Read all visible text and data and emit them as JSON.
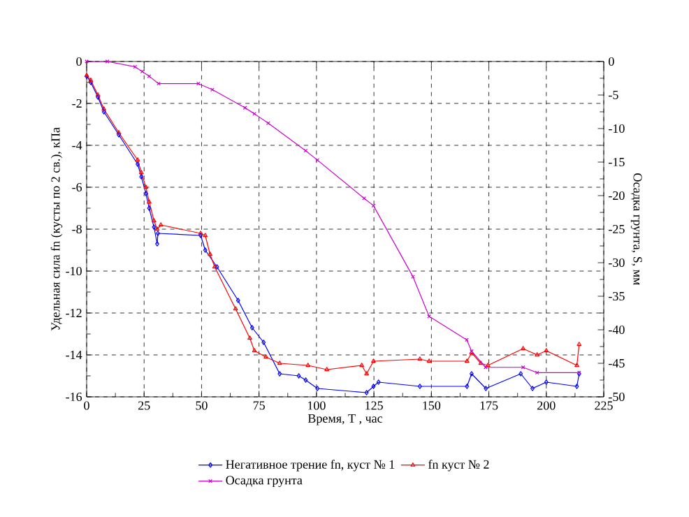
{
  "chart_data": {
    "type": "line",
    "xlabel": "Время, T , час",
    "ylabel": "Удельная сила fn (кусты по 2 св.), кПа",
    "y2label": "Осадка грунта, S, мм",
    "xlim": [
      0,
      225
    ],
    "ylim": [
      -16,
      0
    ],
    "y2lim": [
      -50,
      0
    ],
    "xticks": [
      0,
      25,
      50,
      75,
      100,
      125,
      150,
      175,
      200,
      225
    ],
    "yticks": [
      -16,
      -14,
      -12,
      -10,
      -8,
      -6,
      -4,
      -2,
      0
    ],
    "y2ticks": [
      -50,
      -45,
      -40,
      -35,
      -30,
      -25,
      -20,
      -15,
      -10,
      -5,
      0
    ],
    "grid": true,
    "legend": "bottom",
    "series": [
      {
        "name": "Негативное трение fn, куст № 1",
        "color": "#0000ff",
        "marker": "diamond",
        "x": [
          0,
          1.8,
          4.9,
          7.5,
          14,
          22.2,
          23.8,
          25.8,
          27.2,
          29.3,
          30.7,
          31,
          49.6,
          51.6,
          56.7,
          65.9,
          72,
          77,
          84,
          92.3,
          95.3,
          100.4,
          121.8,
          124.8,
          127,
          145,
          165.5,
          167.5,
          173.7,
          188.9,
          194,
          200,
          213.3,
          214.3
        ],
        "values": [
          -0.7,
          -1.0,
          -1.7,
          -2.4,
          -3.5,
          -4.9,
          -5.5,
          -6.3,
          -7.0,
          -7.9,
          -8.7,
          -8.2,
          -8.3,
          -9.0,
          -9.8,
          -11.4,
          -12.7,
          -13.4,
          -14.9,
          -15.0,
          -15.2,
          -15.6,
          -15.8,
          -15.5,
          -15.3,
          -15.5,
          -15.5,
          -14.9,
          -15.6,
          -14.9,
          -15.6,
          -15.3,
          -15.5,
          -14.9
        ]
      },
      {
        "name": "fn куст № 2",
        "color": "#ff0000",
        "marker": "triangle",
        "x": [
          0,
          1.8,
          4.9,
          7.5,
          14,
          22.2,
          23.8,
          25.8,
          27.2,
          29.3,
          30.7,
          32.3,
          49.6,
          51.6,
          53.7,
          55.7,
          64.8,
          71,
          73,
          78,
          84,
          96.3,
          104.5,
          119.7,
          121.8,
          124.8,
          145,
          149,
          165.5,
          167.5,
          171.5,
          174.6,
          189.9,
          196,
          200,
          213.3,
          214.3
        ],
        "values": [
          -0.67,
          -0.89,
          -1.6,
          -2.27,
          -3.4,
          -4.7,
          -5.3,
          -6.0,
          -6.7,
          -7.6,
          -8.0,
          -7.8,
          -8.2,
          -8.3,
          -9.2,
          -9.8,
          -11.8,
          -13.2,
          -13.8,
          -14.1,
          -14.4,
          -14.5,
          -14.7,
          -14.5,
          -14.9,
          -14.3,
          -14.2,
          -14.3,
          -14.3,
          -13.9,
          -14.4,
          -14.5,
          -13.7,
          -14.0,
          -13.8,
          -14.5,
          -13.5
        ]
      },
      {
        "name": "Осадка грунта",
        "color": "#cc00cc",
        "marker": "cross",
        "axis": "y2",
        "x": [
          0,
          9,
          21.1,
          24.2,
          27.2,
          31.3,
          48.6,
          54.7,
          68.9,
          73,
          79,
          95.3,
          100.4,
          120.7,
          124.8,
          142,
          149,
          165.4,
          167.5,
          173.6,
          189.9,
          196,
          214.3
        ],
        "values": [
          0,
          0,
          -0.8,
          -1.5,
          -2.2,
          -3.3,
          -3.3,
          -4.2,
          -6.9,
          -7.8,
          -9.2,
          -13.3,
          -14.7,
          -20.4,
          -21.5,
          -32.1,
          -38,
          -41.5,
          -43.2,
          -45.6,
          -45.6,
          -46.4,
          -46.4
        ]
      }
    ]
  }
}
